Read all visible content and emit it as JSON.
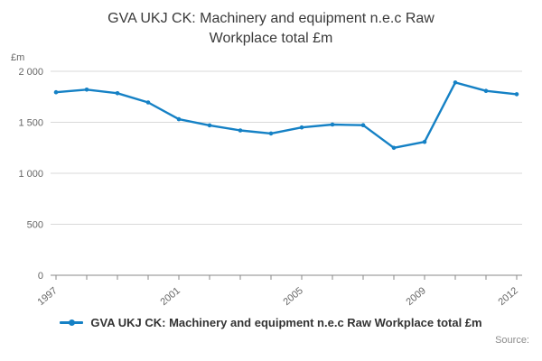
{
  "title": "GVA UKJ CK: Machinery and equipment n.e.c Raw\nWorkplace total £m",
  "chart_data": {
    "type": "line",
    "title": "GVA UKJ CK: Machinery and equipment n.e.c Raw Workplace total £m",
    "unit_label": "£m",
    "x": [
      1997,
      1998,
      1999,
      2000,
      2001,
      2002,
      2003,
      2004,
      2005,
      2006,
      2007,
      2008,
      2009,
      2010,
      2011,
      2012
    ],
    "series": [
      {
        "name": "GVA UKJ CK: Machinery and equipment n.e.c Raw Workplace total £m",
        "values": [
          1795,
          1820,
          1785,
          1695,
          1530,
          1470,
          1420,
          1390,
          1450,
          1478,
          1472,
          1250,
          1308,
          1890,
          1808,
          1775
        ]
      }
    ],
    "ylim": [
      0,
      2000
    ],
    "yticks": [
      0,
      500,
      1000,
      1500,
      2000
    ],
    "ytick_labels": [
      "0",
      "500",
      "1 000",
      "1 500",
      "2 000"
    ],
    "xticks_labeled": [
      1997,
      2001,
      2005,
      2009,
      2012
    ],
    "grid": true,
    "legend_position": "bottom",
    "line_color": "#1581c5",
    "grid_color": "#d9d9d9",
    "axis_color": "#888888",
    "tick_text_color": "#666666"
  },
  "legend": {
    "label": "GVA UKJ CK: Machinery and equipment n.e.c Raw Workplace total £m"
  },
  "footer": {
    "source_label": "Source:"
  }
}
